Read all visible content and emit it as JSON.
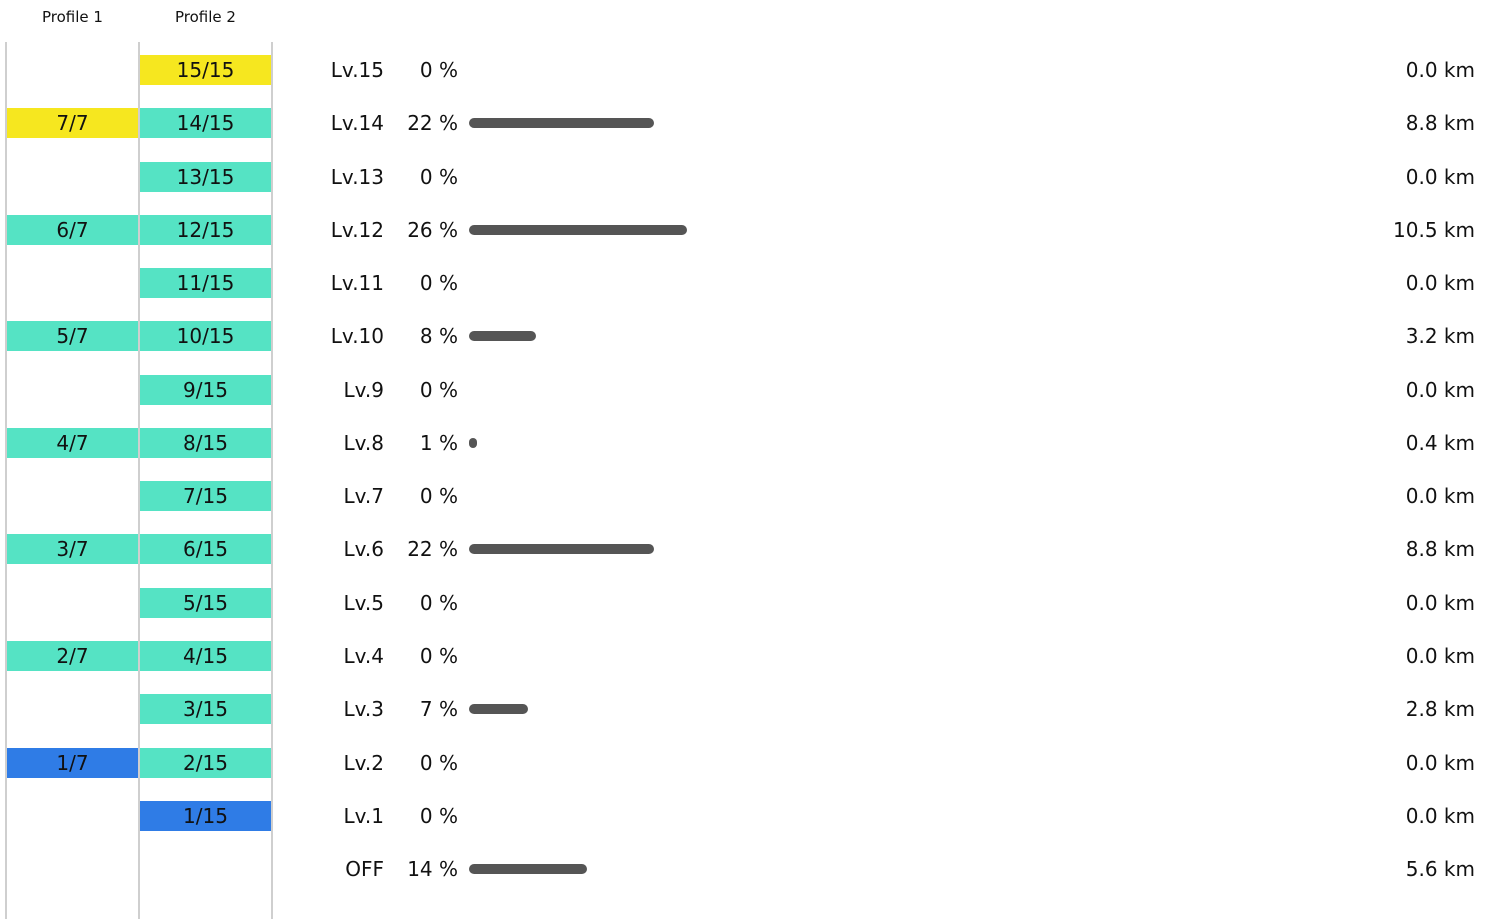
{
  "headers": {
    "profile1": "Profile 1",
    "profile2": "Profile 2"
  },
  "colors": {
    "current": "#f6e71f",
    "available": "#55e3c4",
    "lowest": "#2f7ce6",
    "bar": "#555555"
  },
  "chart_data": {
    "type": "bar",
    "orientation": "horizontal",
    "categories": [
      "Lv.15",
      "Lv.14",
      "Lv.13",
      "Lv.12",
      "Lv.11",
      "Lv.10",
      "Lv.9",
      "Lv.8",
      "Lv.7",
      "Lv.6",
      "Lv.5",
      "Lv.4",
      "Lv.3",
      "Lv.2",
      "Lv.1",
      "OFF"
    ],
    "series": [
      {
        "values": [
          0,
          22,
          0,
          26,
          0,
          8,
          0,
          1,
          0,
          22,
          0,
          0,
          7,
          0,
          0,
          14
        ],
        "unit": "%"
      }
    ],
    "xlim": [
      0,
      100
    ],
    "rows": [
      {
        "level": "Lv.15",
        "pct": "0 %",
        "pct_value": 0,
        "km": "0.0 km",
        "p1": null,
        "p2": {
          "text": "15/15",
          "state": "current"
        }
      },
      {
        "level": "Lv.14",
        "pct": "22 %",
        "pct_value": 22,
        "km": "8.8 km",
        "p1": {
          "text": "7/7",
          "state": "current"
        },
        "p2": {
          "text": "14/15",
          "state": "available"
        }
      },
      {
        "level": "Lv.13",
        "pct": "0 %",
        "pct_value": 0,
        "km": "0.0 km",
        "p1": null,
        "p2": {
          "text": "13/15",
          "state": "available"
        }
      },
      {
        "level": "Lv.12",
        "pct": "26 %",
        "pct_value": 26,
        "km": "10.5 km",
        "p1": {
          "text": "6/7",
          "state": "available"
        },
        "p2": {
          "text": "12/15",
          "state": "available"
        }
      },
      {
        "level": "Lv.11",
        "pct": "0 %",
        "pct_value": 0,
        "km": "0.0 km",
        "p1": null,
        "p2": {
          "text": "11/15",
          "state": "available"
        }
      },
      {
        "level": "Lv.10",
        "pct": "8 %",
        "pct_value": 8,
        "km": "3.2 km",
        "p1": {
          "text": "5/7",
          "state": "available"
        },
        "p2": {
          "text": "10/15",
          "state": "available"
        }
      },
      {
        "level": "Lv.9",
        "pct": "0 %",
        "pct_value": 0,
        "km": "0.0 km",
        "p1": null,
        "p2": {
          "text": "9/15",
          "state": "available"
        }
      },
      {
        "level": "Lv.8",
        "pct": "1 %",
        "pct_value": 1,
        "km": "0.4 km",
        "p1": {
          "text": "4/7",
          "state": "available"
        },
        "p2": {
          "text": "8/15",
          "state": "available"
        }
      },
      {
        "level": "Lv.7",
        "pct": "0 %",
        "pct_value": 0,
        "km": "0.0 km",
        "p1": null,
        "p2": {
          "text": "7/15",
          "state": "available"
        }
      },
      {
        "level": "Lv.6",
        "pct": "22 %",
        "pct_value": 22,
        "km": "8.8 km",
        "p1": {
          "text": "3/7",
          "state": "available"
        },
        "p2": {
          "text": "6/15",
          "state": "available"
        }
      },
      {
        "level": "Lv.5",
        "pct": "0 %",
        "pct_value": 0,
        "km": "0.0 km",
        "p1": null,
        "p2": {
          "text": "5/15",
          "state": "available"
        }
      },
      {
        "level": "Lv.4",
        "pct": "0 %",
        "pct_value": 0,
        "km": "0.0 km",
        "p1": {
          "text": "2/7",
          "state": "available"
        },
        "p2": {
          "text": "4/15",
          "state": "available"
        }
      },
      {
        "level": "Lv.3",
        "pct": "7 %",
        "pct_value": 7,
        "km": "2.8 km",
        "p1": null,
        "p2": {
          "text": "3/15",
          "state": "available"
        }
      },
      {
        "level": "Lv.2",
        "pct": "0 %",
        "pct_value": 0,
        "km": "0.0 km",
        "p1": {
          "text": "1/7",
          "state": "lowest"
        },
        "p2": {
          "text": "2/15",
          "state": "available"
        }
      },
      {
        "level": "Lv.1",
        "pct": "0 %",
        "pct_value": 0,
        "km": "0.0 km",
        "p1": null,
        "p2": {
          "text": "1/15",
          "state": "lowest"
        }
      },
      {
        "level": "OFF",
        "pct": "14 %",
        "pct_value": 14,
        "km": "5.6 km",
        "p1": null,
        "p2": null
      }
    ]
  }
}
